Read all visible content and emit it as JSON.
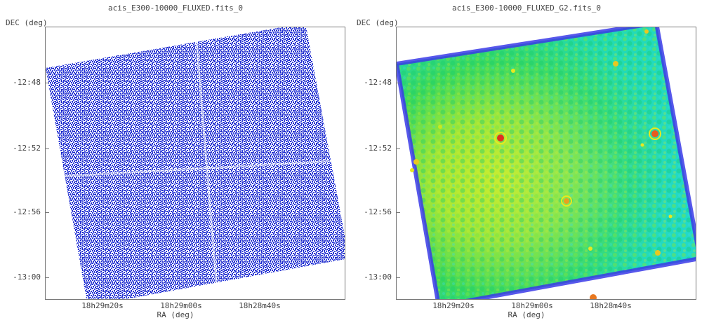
{
  "panels": [
    {
      "title": "acis_E300-10000_FLUXED.fits_0",
      "ylabel": "DEC (deg)",
      "xlabel": "RA (deg)",
      "yticks": [
        "-12:48",
        "-12:52",
        "-12:56",
        "-13:00"
      ],
      "xticks": [
        "18h29m20s",
        "18h29m00s",
        "18h28m40s"
      ],
      "colormap": "blue-sparse"
    },
    {
      "title": "acis_E300-10000_FLUXED_G2.fits_0",
      "ylabel": "DEC (deg)",
      "xlabel": "RA (deg)",
      "yticks": [
        "-12:48",
        "-12:52",
        "-12:56",
        "-13:00"
      ],
      "xticks": [
        "18h29m20s",
        "18h29m00s",
        "18h28m40s"
      ],
      "colormap": "green-smoothed"
    }
  ],
  "colors": {
    "raw_pixel": "#2433d8",
    "smooth_background": "#22d84a",
    "smooth_high": "#e8e820",
    "smooth_edge": "#3a3ae8",
    "point_source": "#e03020"
  }
}
